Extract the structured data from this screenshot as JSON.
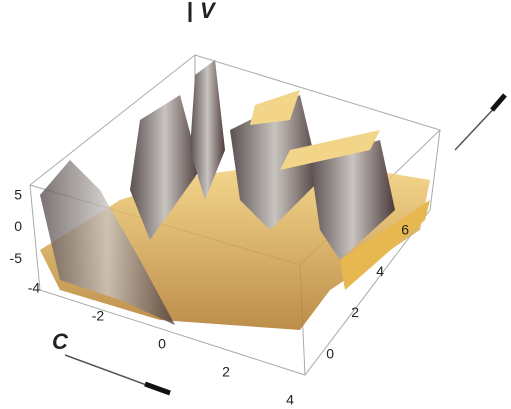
{
  "chart_data": {
    "type": "surface3d",
    "x_label": "C",
    "z_label": "V",
    "xlim": [
      -4.5,
      4.5
    ],
    "xticks": [
      -4,
      -2,
      0,
      2,
      4
    ],
    "ylim": [
      -0.5,
      7.5
    ],
    "yticks": [
      0,
      2,
      4,
      6
    ],
    "zlim": [
      -8,
      8
    ],
    "zticks": [
      5,
      0,
      -5
    ]
  }
}
